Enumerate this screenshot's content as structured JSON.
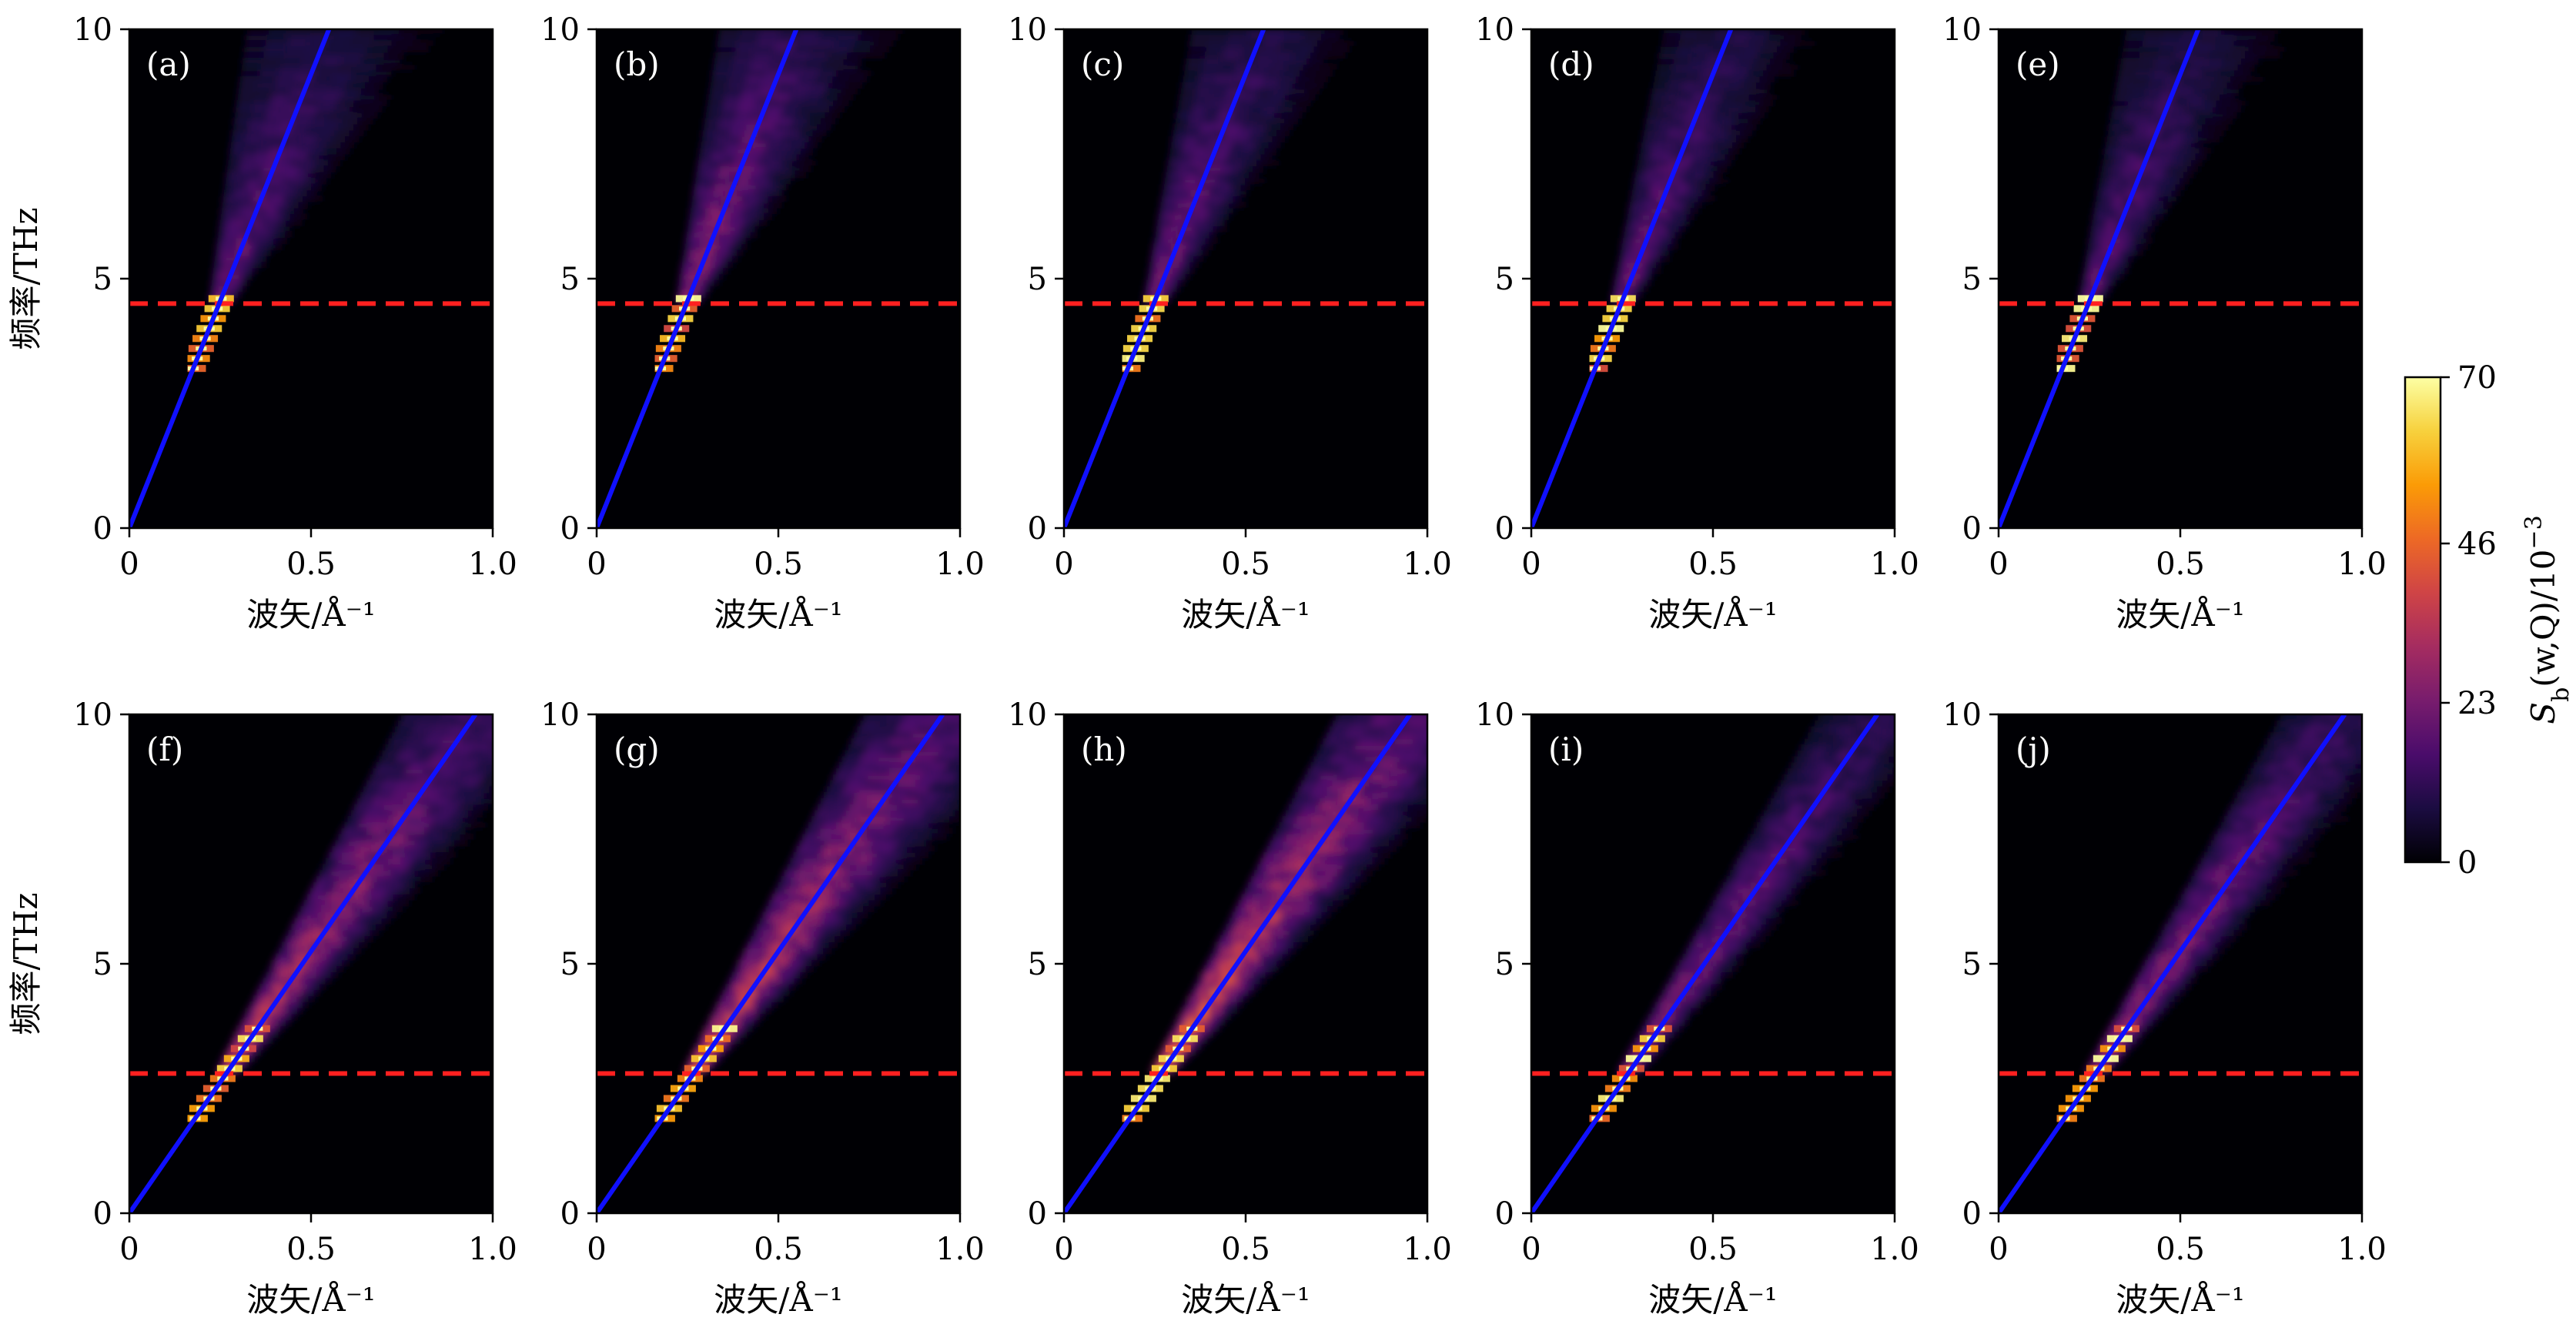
{
  "chart_data": {
    "type": "heatmap",
    "rows": 2,
    "cols": 5,
    "x_axis": {
      "label": "波矢/Å⁻¹",
      "range": [
        0,
        1.0
      ],
      "ticks": [
        0,
        0.5,
        1.0
      ],
      "tick_labels": [
        "0",
        "0.5",
        "1.0"
      ]
    },
    "y_axis": {
      "label": "频率/THz",
      "range": [
        0,
        10
      ],
      "ticks": [
        0,
        5,
        10
      ],
      "tick_labels": [
        "0",
        "5",
        "10"
      ]
    },
    "colorbar": {
      "label": "S_b(w,Q)/10^-3",
      "range": [
        0,
        70
      ],
      "ticks": [
        0,
        23,
        46,
        70
      ],
      "tick_labels": [
        "0",
        "23",
        "46",
        "70"
      ],
      "colormap": "inferno",
      "colors": [
        "#000004",
        "#1b0c41",
        "#4a0c6b",
        "#781c6d",
        "#a52c60",
        "#cf4446",
        "#ed6925",
        "#fb9b06",
        "#f7d13d",
        "#fcffa4"
      ]
    },
    "series_colors": {
      "dispersion_line": "#1010ff",
      "threshold_line": "#ff2020"
    },
    "panels": [
      {
        "label": "(a)",
        "slope_THz_per_invA": 18.2,
        "cutoff_THz": 4.5,
        "band_low_THz": 3.2,
        "band_high_THz": 4.6,
        "tail_strength": 0.3,
        "tail_spread": 0.28
      },
      {
        "label": "(b)",
        "slope_THz_per_invA": 18.2,
        "cutoff_THz": 4.5,
        "band_low_THz": 3.2,
        "band_high_THz": 4.6,
        "tail_strength": 0.38,
        "tail_spread": 0.26
      },
      {
        "label": "(c)",
        "slope_THz_per_invA": 18.2,
        "cutoff_THz": 4.5,
        "band_low_THz": 3.2,
        "band_high_THz": 4.6,
        "tail_strength": 0.33,
        "tail_spread": 0.24
      },
      {
        "label": "(d)",
        "slope_THz_per_invA": 18.2,
        "cutoff_THz": 4.5,
        "band_low_THz": 3.2,
        "band_high_THz": 4.6,
        "tail_strength": 0.3,
        "tail_spread": 0.22
      },
      {
        "label": "(e)",
        "slope_THz_per_invA": 18.2,
        "cutoff_THz": 4.5,
        "band_low_THz": 3.2,
        "band_high_THz": 4.6,
        "tail_strength": 0.28,
        "tail_spread": 0.24
      },
      {
        "label": "(f)",
        "slope_THz_per_invA": 10.5,
        "cutoff_THz": 2.8,
        "band_low_THz": 1.9,
        "band_high_THz": 3.8,
        "tail_strength": 0.5,
        "tail_spread": 0.24
      },
      {
        "label": "(g)",
        "slope_THz_per_invA": 10.5,
        "cutoff_THz": 2.8,
        "band_low_THz": 1.9,
        "band_high_THz": 3.8,
        "tail_strength": 0.55,
        "tail_spread": 0.26
      },
      {
        "label": "(h)",
        "slope_THz_per_invA": 10.5,
        "cutoff_THz": 2.8,
        "band_low_THz": 1.9,
        "band_high_THz": 3.8,
        "tail_strength": 0.62,
        "tail_spread": 0.24
      },
      {
        "label": "(i)",
        "slope_THz_per_invA": 10.5,
        "cutoff_THz": 2.8,
        "band_low_THz": 1.9,
        "band_high_THz": 3.8,
        "tail_strength": 0.38,
        "tail_spread": 0.18
      },
      {
        "label": "(j)",
        "slope_THz_per_invA": 10.5,
        "cutoff_THz": 2.8,
        "band_low_THz": 1.9,
        "band_high_THz": 3.8,
        "tail_strength": 0.42,
        "tail_spread": 0.2
      }
    ]
  }
}
